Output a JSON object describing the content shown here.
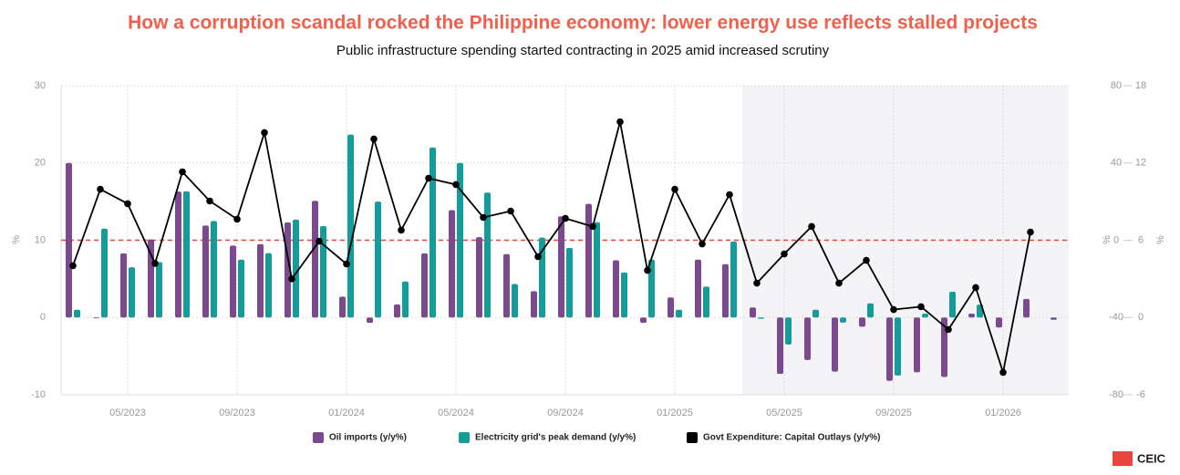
{
  "chart_data": {
    "type": "bar-line",
    "title": "How a corruption scandal rocked the Philippine economy: lower energy use reflects stalled projects",
    "subtitle": "Public infrastructure spending started contracting in 2025 amid increased scrutiny",
    "y_label": "%",
    "y2_label": "%",
    "y3_label": "%",
    "categories": [
      null,
      null,
      "05/2023",
      null,
      null,
      null,
      "09/2023",
      null,
      null,
      null,
      "01/2024",
      null,
      null,
      null,
      "05/2024",
      null,
      null,
      null,
      "09/2024",
      null,
      null,
      null,
      "01/2025",
      null,
      null,
      null,
      "05/2025",
      null,
      null,
      null,
      "09/2025",
      null,
      null,
      null,
      "01/2026",
      null,
      null
    ],
    "series": [
      {
        "name": "Oil imports (y/y%)",
        "type": "bar",
        "axis": "y",
        "color": "#7b4a8e",
        "values": [
          20.0,
          -0.1,
          8.3,
          10.1,
          16.3,
          11.9,
          9.3,
          9.5,
          12.3,
          15.1,
          2.7,
          -0.7,
          1.7,
          8.3,
          13.9,
          10.4,
          8.2,
          3.4,
          13.1,
          14.7,
          7.4,
          -0.7,
          2.6,
          7.5,
          6.9,
          1.3,
          -7.3,
          -5.5,
          -7.0,
          -1.2,
          -8.2,
          -7.1,
          -7.7,
          0.5,
          -1.3,
          2.4,
          -0.3
        ]
      },
      {
        "name": "Electricity grid's peak demand (y/y%)",
        "type": "bar",
        "axis": "y3",
        "color": "#139c9a",
        "values": [
          0.6,
          6.9,
          3.9,
          4.3,
          9.8,
          7.5,
          4.5,
          5.0,
          7.6,
          7.1,
          14.2,
          9.0,
          2.8,
          13.2,
          12.0,
          9.7,
          2.6,
          6.2,
          5.4,
          7.4,
          3.5,
          4.5,
          0.6,
          2.4,
          5.9,
          -0.1,
          -2.1,
          0.6,
          -0.4,
          1.1,
          -4.5,
          0.3,
          2.0,
          1.0,
          null,
          null,
          null
        ]
      },
      {
        "name": "Govt Expenditure: Capital Outlays (y/y%)",
        "type": "line",
        "axis": "y2",
        "color": "#000000",
        "values": [
          -13.2,
          26.4,
          18.9,
          -12.0,
          35.4,
          20.3,
          10.9,
          55.7,
          -20.0,
          -0.5,
          -12.3,
          52.4,
          5.2,
          32.1,
          28.8,
          11.8,
          15.1,
          -8.5,
          11.3,
          7.1,
          61.3,
          -15.6,
          26.4,
          -1.9,
          23.6,
          -22.2,
          -7.1,
          7.1,
          -22.2,
          -10.4,
          -35.9,
          -34.4,
          -46.2,
          -24.5,
          -68.4,
          4.2,
          null
        ]
      }
    ],
    "ylim": [
      -10,
      30
    ],
    "yticks": [
      -10,
      0,
      10,
      20,
      30
    ],
    "y2lim": [
      -80,
      80
    ],
    "y2ticks": [
      -80,
      -40,
      0,
      40,
      80
    ],
    "y3lim": [
      -6,
      18
    ],
    "y3ticks": [
      -6,
      0,
      6,
      12,
      18
    ],
    "reference_line": {
      "axis": "y2",
      "value": 0,
      "color": "#e8463c"
    },
    "grid": true,
    "legend": "bottom",
    "logo": "CEIC"
  }
}
